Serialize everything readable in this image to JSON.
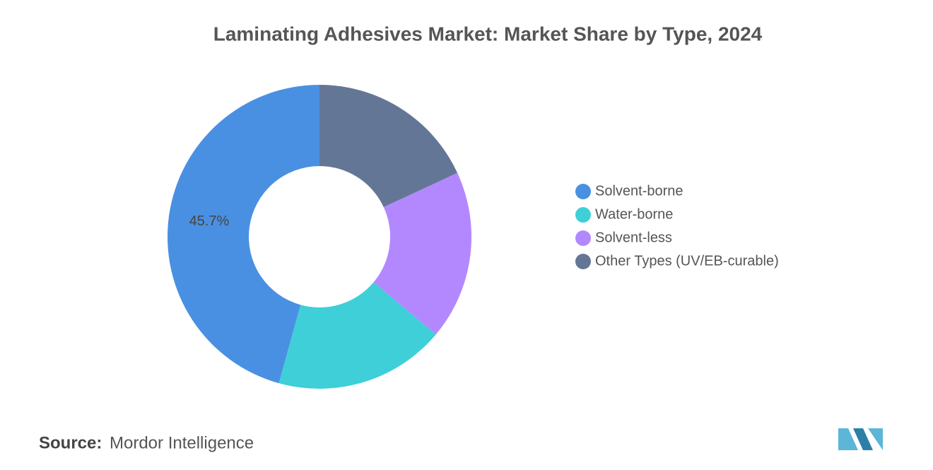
{
  "chart_data": {
    "type": "donut",
    "title": "Laminating Adhesives Market: Market Share by Type, 2024",
    "categories": [
      "Solvent-borne",
      "Water-borne",
      "Solvent-less",
      "Other Types (UV/EB-curable)"
    ],
    "values": [
      45.7,
      18.2,
      18.0,
      18.1
    ],
    "value_labels": [
      "45.7%",
      null,
      null,
      null
    ],
    "colors": [
      "#4a90e2",
      "#3ecfd8",
      "#b388ff",
      "#647696"
    ],
    "legend": "right"
  },
  "footer": {
    "source_label": "Source:",
    "source": "Mordor Intelligence"
  }
}
